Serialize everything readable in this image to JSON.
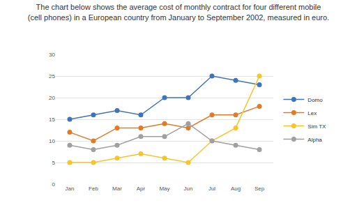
{
  "chart_data": {
    "type": "line",
    "title": "The chart below shows the average cost of monthly contract for four different mobile\n(cell phones) in a European country from January to September 2002, measured in euro.",
    "categories": [
      "Jan",
      "Feb",
      "Mar",
      "Apr",
      "May",
      "Jun",
      "Jul",
      "Aug",
      "Sep"
    ],
    "series": [
      {
        "name": "Domo",
        "color": "#3f75b8",
        "values": [
          15,
          16,
          17,
          16,
          20,
          20,
          25,
          24,
          23
        ]
      },
      {
        "name": "Lex",
        "color": "#e07b2a",
        "values": [
          12,
          10,
          13,
          13,
          14,
          13,
          16,
          16,
          18
        ]
      },
      {
        "name": "Sim TX",
        "color": "#f7c42a",
        "values": [
          5,
          5,
          6,
          7,
          6,
          5,
          10,
          13,
          25
        ]
      },
      {
        "name": "Alpha",
        "color": "#a0a0a0",
        "values": [
          9,
          8,
          9,
          11,
          11,
          14,
          10,
          9,
          8
        ]
      }
    ],
    "ylim": [
      0,
      30
    ],
    "yticks": [
      0,
      5,
      10,
      15,
      20,
      25,
      30
    ],
    "grid": true,
    "legend": "right",
    "marker": "circle"
  }
}
